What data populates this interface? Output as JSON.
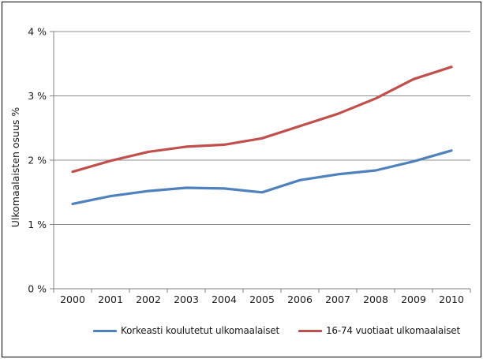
{
  "figure": {
    "background": "#ffffff",
    "border_color": "#000000",
    "gridline_color": "#8c8c8c",
    "axis_color": "#808080"
  },
  "chart_data": {
    "type": "line",
    "title": "",
    "xlabel": "",
    "ylabel": "Ulkomaalaisten osuus %",
    "x": [
      "2000",
      "2001",
      "2002",
      "2003",
      "2004",
      "2005",
      "2006",
      "2007",
      "2008",
      "2009",
      "2010"
    ],
    "ylim": [
      0,
      4
    ],
    "yticks": [
      {
        "value": 0,
        "label": "0 %"
      },
      {
        "value": 1,
        "label": "1 %"
      },
      {
        "value": 2,
        "label": "2 %"
      },
      {
        "value": 3,
        "label": "3 %"
      },
      {
        "value": 4,
        "label": "4 %"
      }
    ],
    "grid": true,
    "legend_position": "bottom",
    "series": [
      {
        "name": "Korkeasti koulutetut ulkomaalaiset",
        "color": "#4F81BD",
        "values": [
          1.32,
          1.44,
          1.52,
          1.57,
          1.56,
          1.5,
          1.69,
          1.78,
          1.84,
          1.98,
          2.15
        ]
      },
      {
        "name": "16-74 vuotiaat ulkomaalaiset",
        "color": "#C0504D",
        "values": [
          1.82,
          1.99,
          2.13,
          2.21,
          2.24,
          2.34,
          2.53,
          2.72,
          2.96,
          3.26,
          3.45
        ]
      }
    ]
  }
}
